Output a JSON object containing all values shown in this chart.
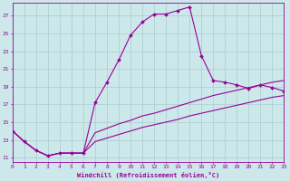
{
  "xlabel": "Windchill (Refroidissement éolien,°C)",
  "background_color": "#cce8ea",
  "grid_color": "#aacccc",
  "line_color": "#990099",
  "x_ticks": [
    0,
    1,
    2,
    3,
    4,
    5,
    6,
    7,
    8,
    9,
    10,
    11,
    12,
    13,
    14,
    15,
    16,
    17,
    18,
    19,
    20,
    21,
    22,
    23
  ],
  "y_ticks": [
    11,
    13,
    15,
    17,
    19,
    21,
    23,
    25,
    27
  ],
  "xlim": [
    0,
    23
  ],
  "ylim": [
    10.5,
    28.5
  ],
  "series1_x": [
    0,
    1,
    2,
    3,
    4,
    5,
    6,
    7,
    8,
    9,
    10,
    11,
    12,
    13,
    14,
    15,
    16,
    17,
    18,
    19,
    20,
    21,
    22,
    23
  ],
  "series1_y": [
    14.0,
    12.8,
    11.8,
    11.2,
    11.5,
    11.5,
    11.5,
    17.2,
    19.5,
    22.0,
    24.8,
    26.3,
    27.2,
    27.2,
    27.6,
    28.0,
    22.5,
    19.7,
    19.5,
    19.2,
    18.8,
    19.2,
    18.9,
    18.5
  ],
  "series2_x": [
    0,
    1,
    2,
    3,
    4,
    5,
    6,
    7,
    8,
    9,
    10,
    11,
    12,
    13,
    14,
    15,
    16,
    17,
    18,
    19,
    20,
    21,
    22,
    23
  ],
  "series2_y": [
    14.0,
    12.8,
    11.8,
    11.2,
    11.5,
    11.5,
    11.5,
    13.8,
    14.3,
    14.8,
    15.2,
    15.7,
    16.0,
    16.4,
    16.8,
    17.2,
    17.6,
    18.0,
    18.3,
    18.6,
    18.9,
    19.2,
    19.5,
    19.7
  ],
  "series3_x": [
    0,
    1,
    2,
    3,
    4,
    5,
    6,
    7,
    8,
    9,
    10,
    11,
    12,
    13,
    14,
    15,
    16,
    17,
    18,
    19,
    20,
    21,
    22,
    23
  ],
  "series3_y": [
    14.0,
    12.8,
    11.8,
    11.2,
    11.5,
    11.5,
    11.5,
    12.8,
    13.2,
    13.6,
    14.0,
    14.4,
    14.7,
    15.0,
    15.3,
    15.7,
    16.0,
    16.3,
    16.6,
    16.9,
    17.2,
    17.5,
    17.8,
    18.0
  ],
  "markersize": 2.0,
  "linewidth": 0.8
}
